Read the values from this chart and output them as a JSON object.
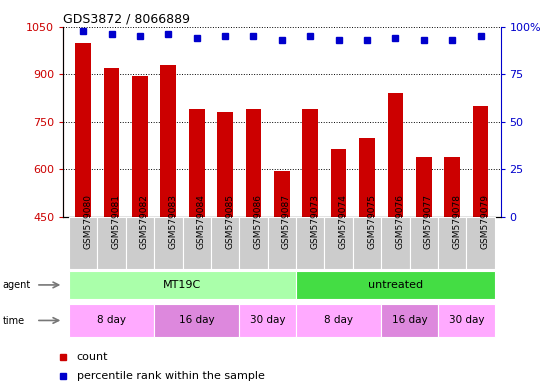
{
  "title": "GDS3872 / 8066889",
  "samples": [
    "GSM579080",
    "GSM579081",
    "GSM579082",
    "GSM579083",
    "GSM579084",
    "GSM579085",
    "GSM579086",
    "GSM579087",
    "GSM579073",
    "GSM579074",
    "GSM579075",
    "GSM579076",
    "GSM579077",
    "GSM579078",
    "GSM579079"
  ],
  "counts": [
    1000,
    920,
    895,
    930,
    790,
    780,
    790,
    595,
    790,
    665,
    700,
    840,
    640,
    640,
    800
  ],
  "percentiles": [
    98,
    96,
    95,
    96,
    94,
    95,
    95,
    93,
    95,
    93,
    93,
    94,
    93,
    93,
    95
  ],
  "ylim_left": [
    450,
    1050
  ],
  "ylim_right": [
    0,
    100
  ],
  "yticks_left": [
    450,
    600,
    750,
    900,
    1050
  ],
  "yticks_right": [
    0,
    25,
    50,
    75,
    100
  ],
  "bar_color": "#cc0000",
  "dot_color": "#0000cc",
  "agent_groups": [
    {
      "label": "MT19C",
      "start": 0,
      "end": 8,
      "color": "#aaffaa"
    },
    {
      "label": "untreated",
      "start": 8,
      "end": 15,
      "color": "#44dd44"
    }
  ],
  "time_groups": [
    {
      "label": "8 day",
      "start": 0,
      "end": 3,
      "color": "#ffaaff"
    },
    {
      "label": "16 day",
      "start": 3,
      "end": 6,
      "color": "#dd88dd"
    },
    {
      "label": "30 day",
      "start": 6,
      "end": 8,
      "color": "#ffaaff"
    },
    {
      "label": "8 day",
      "start": 8,
      "end": 11,
      "color": "#ffaaff"
    },
    {
      "label": "16 day",
      "start": 11,
      "end": 13,
      "color": "#dd88dd"
    },
    {
      "label": "30 day",
      "start": 13,
      "end": 15,
      "color": "#ffaaff"
    }
  ],
  "tick_bg_color": "#cccccc",
  "legend_count_color": "#cc0000",
  "legend_dot_color": "#0000cc",
  "background_color": "#ffffff"
}
